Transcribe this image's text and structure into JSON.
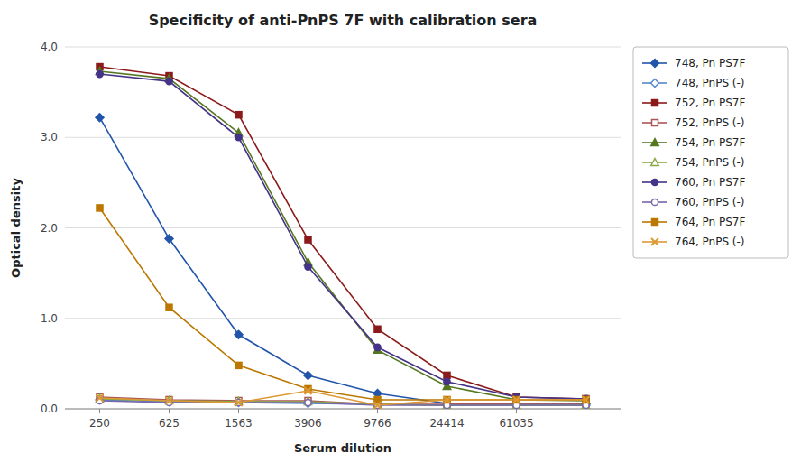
{
  "chart_data": {
    "type": "line",
    "title": "Specificity of anti-PnPS 7F with calibration sera",
    "xlabel": "Serum dilution",
    "ylabel": "Optical density",
    "categories": [
      "250",
      "625",
      "1563",
      "3906",
      "9766",
      "24414",
      "61035",
      null
    ],
    "ylim": [
      0.0,
      4.0
    ],
    "yticks": [
      {
        "value": 0.0,
        "label": "0.0"
      },
      {
        "value": 1.0,
        "label": "1.0"
      },
      {
        "value": 2.0,
        "label": "2.0"
      },
      {
        "value": 3.0,
        "label": "3.0"
      },
      {
        "value": 4.0,
        "label": "4.0"
      }
    ],
    "grid": true,
    "legend": "right",
    "series": [
      {
        "name": "748, Pn PS7F",
        "color": "#2255AA",
        "marker": "diamond",
        "values": [
          3.22,
          1.88,
          0.82,
          0.37,
          0.17,
          0.06,
          0.06,
          0.06
        ]
      },
      {
        "name": "748, PnPS (-)",
        "color": "#5588CC",
        "marker": "diamond-open",
        "values": [
          0.1,
          0.08,
          0.07,
          0.06,
          0.05,
          0.04,
          0.04,
          0.04
        ]
      },
      {
        "name": "752, Pn PS7F",
        "color": "#8B1A1A",
        "marker": "square",
        "values": [
          3.78,
          3.68,
          3.25,
          1.87,
          0.88,
          0.37,
          0.13,
          0.11
        ]
      },
      {
        "name": "752, PnPS (-)",
        "color": "#AA5555",
        "marker": "square-open",
        "values": [
          0.13,
          0.1,
          0.09,
          0.09,
          0.05,
          0.05,
          0.06,
          0.06
        ]
      },
      {
        "name": "754, Pn PS7F",
        "color": "#557722",
        "marker": "triangle",
        "values": [
          3.73,
          3.65,
          3.05,
          1.62,
          0.65,
          0.25,
          0.1,
          0.09
        ]
      },
      {
        "name": "754, PnPS (-)",
        "color": "#88AA44",
        "marker": "triangle-open",
        "values": [
          0.11,
          0.09,
          0.08,
          0.08,
          0.05,
          0.04,
          0.04,
          0.04
        ]
      },
      {
        "name": "760, Pn PS7F",
        "color": "#443388",
        "marker": "circle",
        "values": [
          3.7,
          3.62,
          3.0,
          1.57,
          0.68,
          0.3,
          0.13,
          0.11
        ]
      },
      {
        "name": "760, PnPS (-)",
        "color": "#7766AA",
        "marker": "circle-open",
        "values": [
          0.09,
          0.07,
          0.07,
          0.07,
          0.04,
          0.04,
          0.04,
          0.04
        ]
      },
      {
        "name": "764, Pn PS7F",
        "color": "#BB7700",
        "marker": "square",
        "values": [
          2.22,
          1.12,
          0.48,
          0.22,
          0.1,
          0.1,
          0.1,
          0.1
        ]
      },
      {
        "name": "764, PnPS (-)",
        "color": "#DD9933",
        "marker": "x",
        "values": [
          0.12,
          0.09,
          0.07,
          0.2,
          0.04,
          0.1,
          0.1,
          0.1
        ]
      }
    ]
  }
}
